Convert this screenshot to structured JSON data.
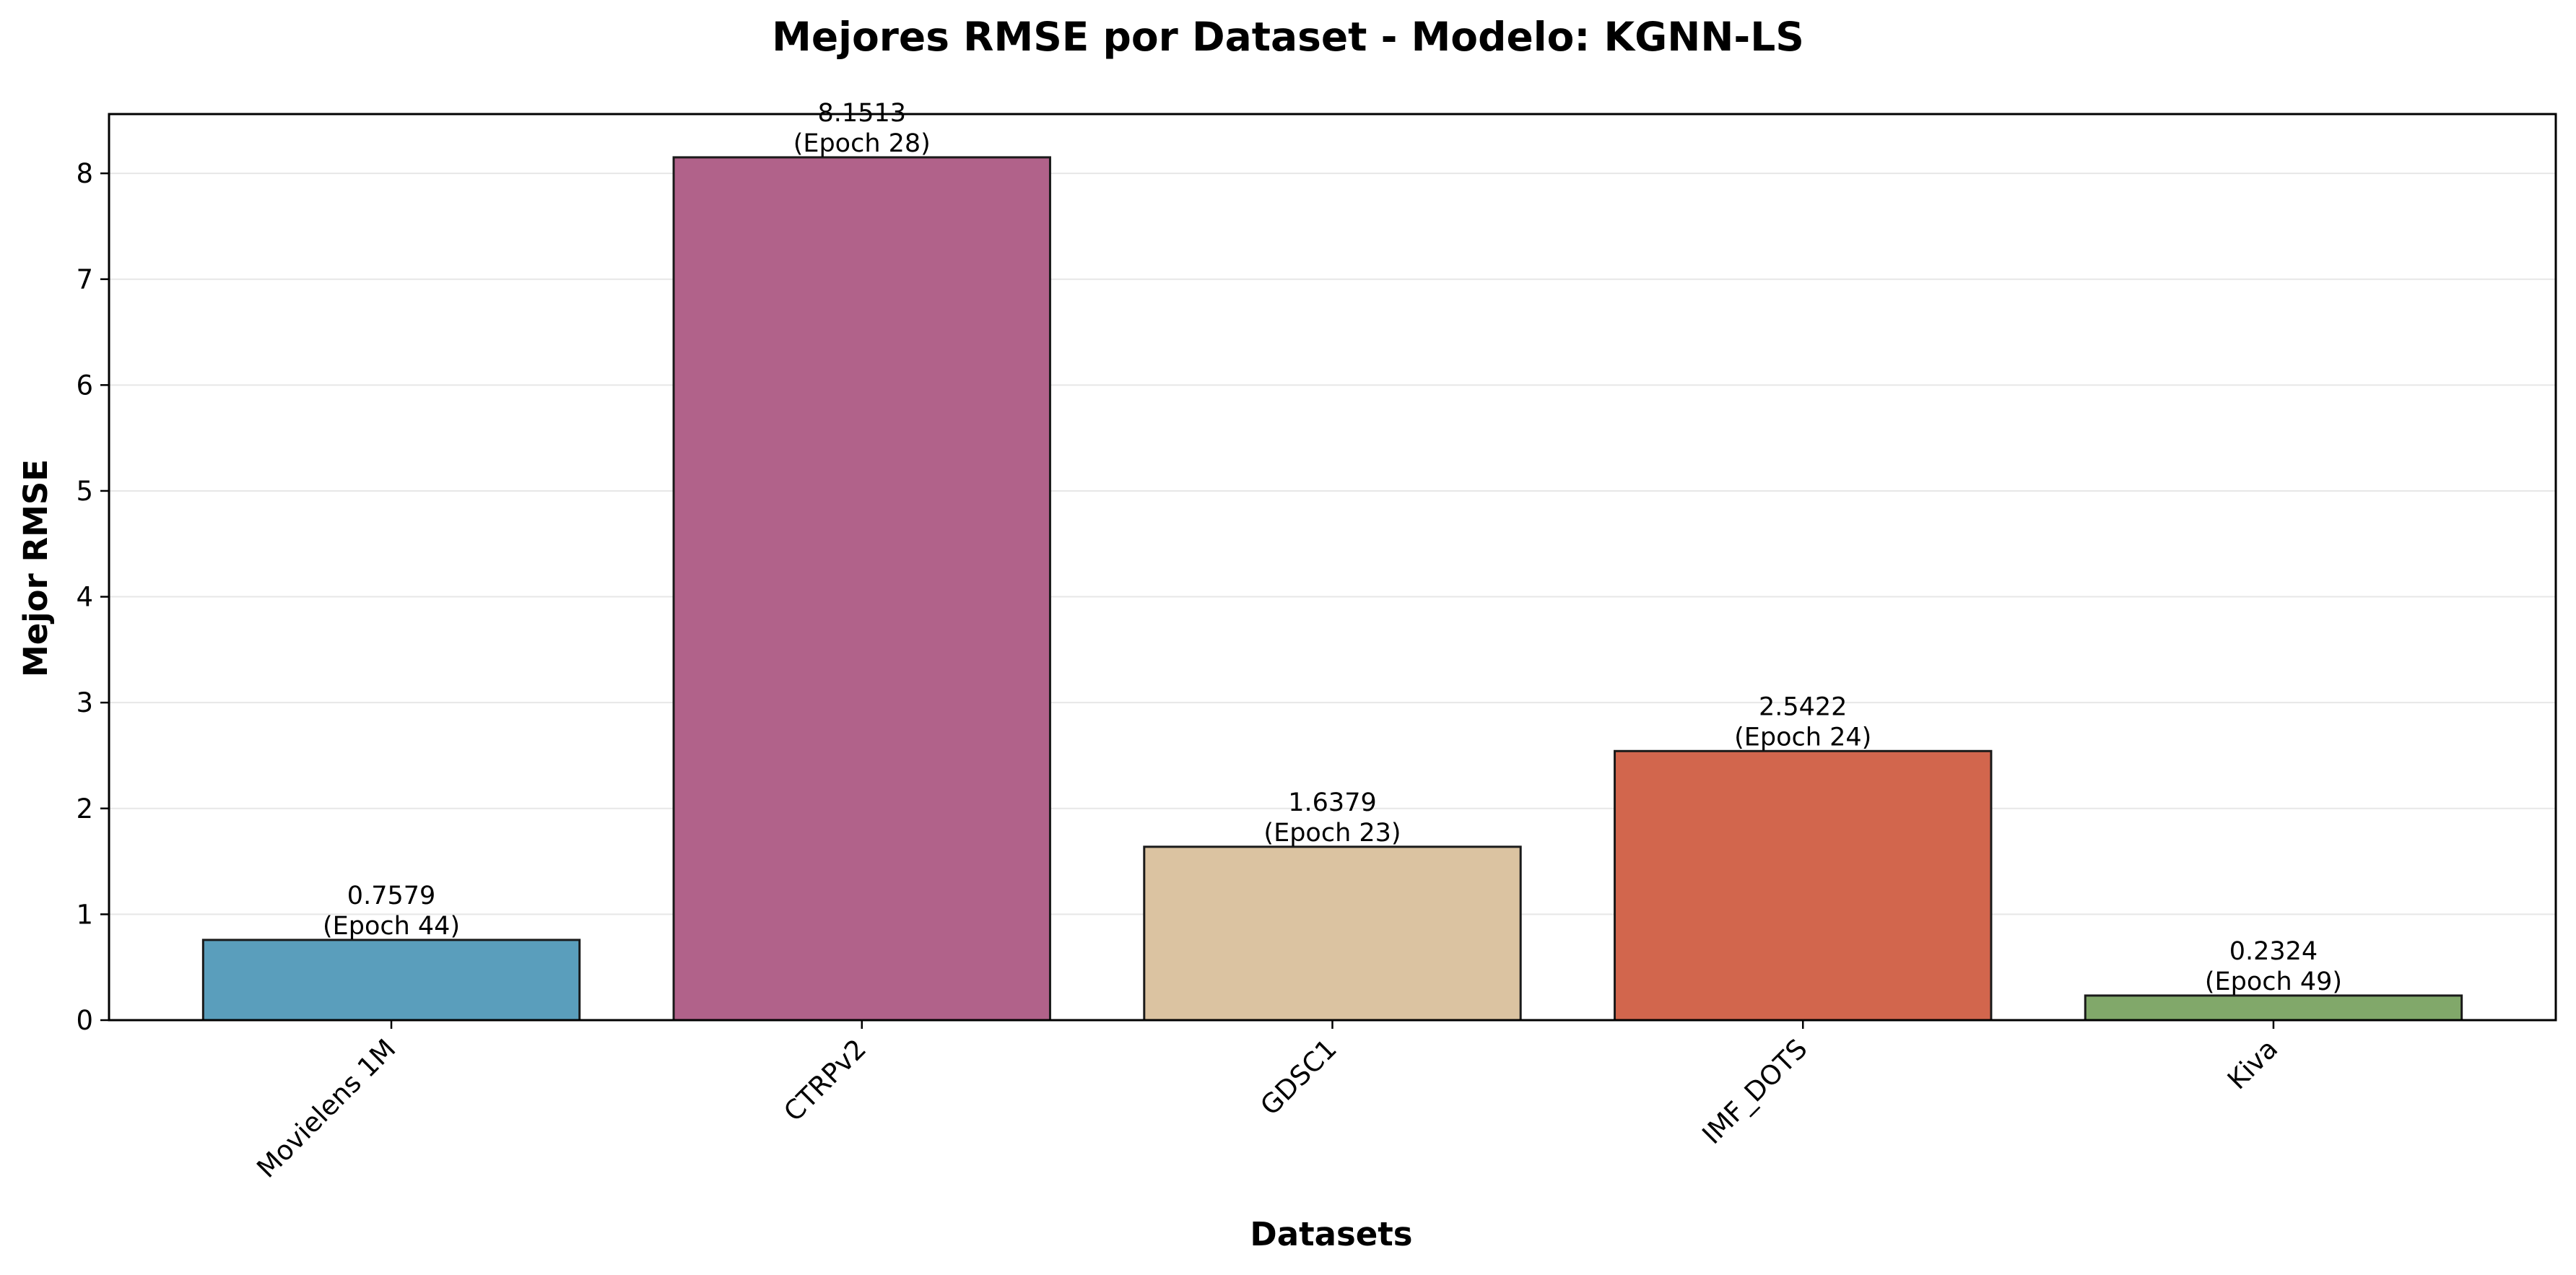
{
  "chart_data": {
    "type": "bar",
    "title": "Mejores RMSE por Dataset - Modelo: KGNN-LS",
    "xlabel": "Datasets",
    "ylabel": "Mejor RMSE",
    "categories": [
      "Movielens 1M",
      "CTRPv2",
      "GDSC1",
      "IMF_DOTS",
      "Kiva"
    ],
    "values": [
      0.7579,
      8.1513,
      1.6379,
      2.5422,
      0.2324
    ],
    "value_labels": [
      "0.7579",
      "8.1513",
      "1.6379",
      "2.5422",
      "0.2324"
    ],
    "epoch_labels": [
      "(Epoch 44)",
      "(Epoch 28)",
      "(Epoch 23)",
      "(Epoch 24)",
      "(Epoch 49)"
    ],
    "bar_colors": [
      "#5a9ebc",
      "#b1628a",
      "#dbc3a1",
      "#d2664d",
      "#81a86a"
    ],
    "ylim": [
      0,
      8.56
    ],
    "yticks": [
      0,
      1,
      2,
      3,
      4,
      5,
      6,
      7,
      8
    ],
    "grid": "horizontal",
    "legend": "none"
  }
}
